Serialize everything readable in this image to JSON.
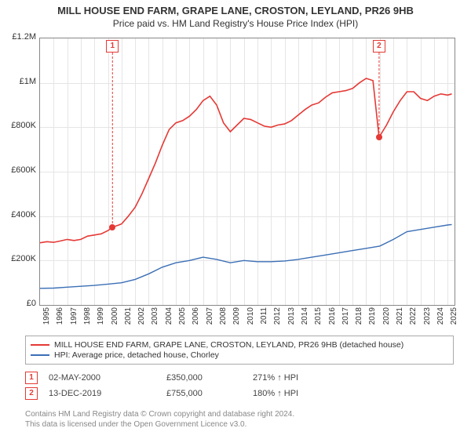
{
  "title_line1": "MILL HOUSE END FARM, GRAPE LANE, CROSTON, LEYLAND, PR26 9HB",
  "title_line2": "Price paid vs. HM Land Registry's House Price Index (HPI)",
  "chart": {
    "type": "line",
    "background_color": "#ffffff",
    "grid_color": "#e5e5e5",
    "border_color": "#888888",
    "x_range": [
      1995,
      2025.5
    ],
    "y_range": [
      0,
      1200000
    ],
    "y_ticks": [
      {
        "v": 0,
        "label": "£0"
      },
      {
        "v": 200000,
        "label": "£200K"
      },
      {
        "v": 400000,
        "label": "£400K"
      },
      {
        "v": 600000,
        "label": "£600K"
      },
      {
        "v": 800000,
        "label": "£800K"
      },
      {
        "v": 1000000,
        "label": "£1M"
      },
      {
        "v": 1200000,
        "label": "£1.2M"
      }
    ],
    "x_ticks": [
      1995,
      1996,
      1997,
      1998,
      1999,
      2000,
      2001,
      2002,
      2003,
      2004,
      2005,
      2006,
      2007,
      2008,
      2009,
      2010,
      2011,
      2012,
      2013,
      2014,
      2015,
      2016,
      2017,
      2018,
      2019,
      2020,
      2021,
      2022,
      2023,
      2024,
      2025
    ],
    "series": [
      {
        "name": "property",
        "color": "#e53935",
        "width": 1.6,
        "label": "MILL HOUSE END FARM, GRAPE LANE, CROSTON, LEYLAND, PR26 9HB (detached house)",
        "points": [
          [
            1995,
            280000
          ],
          [
            1995.5,
            285000
          ],
          [
            1996,
            282000
          ],
          [
            1996.5,
            288000
          ],
          [
            1997,
            295000
          ],
          [
            1997.5,
            290000
          ],
          [
            1998,
            295000
          ],
          [
            1998.5,
            310000
          ],
          [
            1999,
            315000
          ],
          [
            1999.5,
            320000
          ],
          [
            2000,
            335000
          ],
          [
            2000.33,
            350000
          ],
          [
            2000.8,
            360000
          ],
          [
            2001,
            365000
          ],
          [
            2001.5,
            400000
          ],
          [
            2002,
            440000
          ],
          [
            2002.5,
            500000
          ],
          [
            2003,
            570000
          ],
          [
            2003.5,
            640000
          ],
          [
            2004,
            720000
          ],
          [
            2004.5,
            790000
          ],
          [
            2005,
            820000
          ],
          [
            2005.5,
            830000
          ],
          [
            2006,
            850000
          ],
          [
            2006.5,
            880000
          ],
          [
            2007,
            920000
          ],
          [
            2007.5,
            940000
          ],
          [
            2008,
            900000
          ],
          [
            2008.5,
            820000
          ],
          [
            2009,
            780000
          ],
          [
            2009.5,
            810000
          ],
          [
            2010,
            840000
          ],
          [
            2010.5,
            835000
          ],
          [
            2011,
            820000
          ],
          [
            2011.5,
            805000
          ],
          [
            2012,
            800000
          ],
          [
            2012.5,
            810000
          ],
          [
            2013,
            815000
          ],
          [
            2013.5,
            830000
          ],
          [
            2014,
            855000
          ],
          [
            2014.5,
            880000
          ],
          [
            2015,
            900000
          ],
          [
            2015.5,
            910000
          ],
          [
            2016,
            935000
          ],
          [
            2016.5,
            955000
          ],
          [
            2017,
            960000
          ],
          [
            2017.5,
            965000
          ],
          [
            2018,
            975000
          ],
          [
            2018.5,
            1000000
          ],
          [
            2019,
            1020000
          ],
          [
            2019.5,
            1010000
          ],
          [
            2019.95,
            755000
          ],
          [
            2020.2,
            780000
          ],
          [
            2020.5,
            810000
          ],
          [
            2021,
            870000
          ],
          [
            2021.5,
            920000
          ],
          [
            2022,
            960000
          ],
          [
            2022.5,
            960000
          ],
          [
            2023,
            930000
          ],
          [
            2023.5,
            920000
          ],
          [
            2024,
            940000
          ],
          [
            2024.5,
            950000
          ],
          [
            2025,
            945000
          ],
          [
            2025.3,
            950000
          ]
        ]
      },
      {
        "name": "hpi",
        "color": "#3b6fb6",
        "width": 1.4,
        "label": "HPI: Average price, detached house, Chorley",
        "points": [
          [
            1995,
            75000
          ],
          [
            1996,
            76000
          ],
          [
            1997,
            80000
          ],
          [
            1998,
            84000
          ],
          [
            1999,
            88000
          ],
          [
            2000,
            94000
          ],
          [
            2001,
            100000
          ],
          [
            2002,
            115000
          ],
          [
            2003,
            140000
          ],
          [
            2004,
            170000
          ],
          [
            2005,
            190000
          ],
          [
            2006,
            200000
          ],
          [
            2007,
            215000
          ],
          [
            2008,
            205000
          ],
          [
            2009,
            190000
          ],
          [
            2010,
            200000
          ],
          [
            2011,
            195000
          ],
          [
            2012,
            195000
          ],
          [
            2013,
            198000
          ],
          [
            2014,
            205000
          ],
          [
            2015,
            215000
          ],
          [
            2016,
            225000
          ],
          [
            2017,
            235000
          ],
          [
            2018,
            245000
          ],
          [
            2019,
            255000
          ],
          [
            2020,
            265000
          ],
          [
            2021,
            295000
          ],
          [
            2022,
            330000
          ],
          [
            2023,
            340000
          ],
          [
            2024,
            350000
          ],
          [
            2025,
            360000
          ],
          [
            2025.3,
            362000
          ]
        ]
      }
    ],
    "markers": [
      {
        "id": "1",
        "x": 2000.33,
        "y": 350000
      },
      {
        "id": "2",
        "x": 2019.95,
        "y": 755000
      }
    ]
  },
  "legend": {
    "series1_color": "#e53935",
    "series1_label": "MILL HOUSE END FARM, GRAPE LANE, CROSTON, LEYLAND, PR26 9HB (detached house)",
    "series2_color": "#3b6fb6",
    "series2_label": "HPI: Average price, detached house, Chorley"
  },
  "footer_rows": [
    {
      "num": "1",
      "date": "02-MAY-2000",
      "price": "£350,000",
      "pct": "271% ↑ HPI"
    },
    {
      "num": "2",
      "date": "13-DEC-2019",
      "price": "£755,000",
      "pct": "180% ↑ HPI"
    }
  ],
  "copyright_line1": "Contains HM Land Registry data © Crown copyright and database right 2024.",
  "copyright_line2": "This data is licensed under the Open Government Licence v3.0."
}
